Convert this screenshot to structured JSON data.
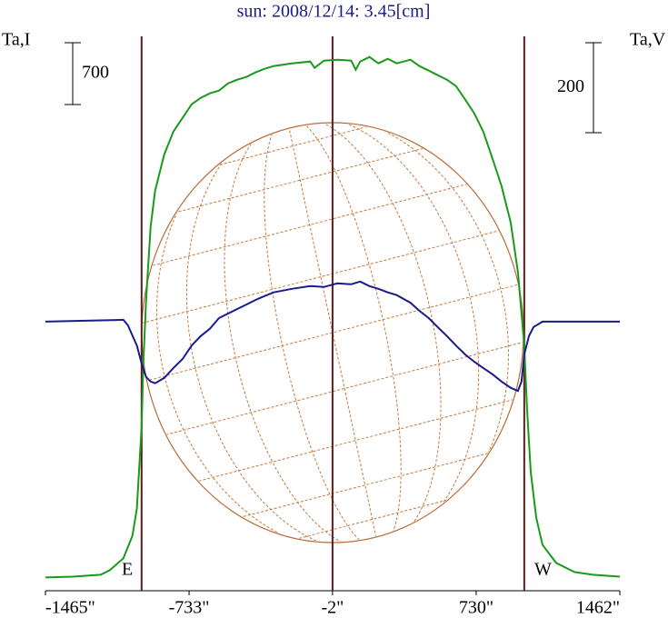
{
  "chart_data": {
    "type": "line",
    "title": "sun: 2008/12/14: 3.45[cm]",
    "xlim": [
      -1465,
      1462
    ],
    "xticks": [
      {
        "value": -1465,
        "label": "-1465\""
      },
      {
        "value": -733,
        "label": "-733\""
      },
      {
        "value": -2,
        "label": "-2\""
      },
      {
        "value": 730,
        "label": "730\""
      },
      {
        "value": 1462,
        "label": "1462\""
      }
    ],
    "ylim": [
      -150,
      6130
    ],
    "y2lim": [
      -598,
      634
    ],
    "y_scale_bar": 700,
    "y2_scale_bar": 200,
    "vertical_lines": [
      -975,
      -2,
      975
    ],
    "annotations": [
      "E",
      "W"
    ],
    "series": [
      {
        "name": "Ta,I",
        "color": "#1a9a1a",
        "x": [
          -1465,
          -1324,
          -1184,
          -1138,
          -1068,
          -1022,
          -999,
          -975,
          -966,
          -952,
          -929,
          -906,
          -859,
          -813,
          -766,
          -720,
          -674,
          -627,
          -581,
          -534,
          -488,
          -441,
          -395,
          -348,
          -302,
          -209,
          -116,
          -93,
          -46,
          23,
          93,
          116,
          139,
          186,
          232,
          279,
          325,
          395,
          441,
          488,
          534,
          581,
          627,
          674,
          720,
          766,
          813,
          859,
          906,
          943,
          975,
          989,
          1008,
          1036,
          1068,
          1138,
          1231,
          1324,
          1462
        ],
        "values": [
          0,
          10,
          31,
          82,
          216,
          473,
          782,
          1708,
          2428,
          3149,
          3972,
          4384,
          4795,
          5052,
          5207,
          5361,
          5433,
          5485,
          5515,
          5598,
          5639,
          5670,
          5721,
          5762,
          5793,
          5824,
          5845,
          5773,
          5855,
          5865,
          5855,
          5752,
          5845,
          5896,
          5824,
          5876,
          5824,
          5865,
          5793,
          5742,
          5690,
          5639,
          5567,
          5413,
          5258,
          5052,
          4744,
          4435,
          4023,
          3457,
          2634,
          1914,
          1194,
          679,
          370,
          165,
          62,
          31,
          10
        ]
      },
      {
        "name": "Ta,V",
        "color": "#1a1a8c",
        "axis": "y2",
        "x": [
          -1465,
          -1068,
          -1045,
          -999,
          -975,
          -952,
          -929,
          -906,
          -859,
          -813,
          -766,
          -720,
          -674,
          -627,
          -581,
          -534,
          -488,
          -441,
          -395,
          -348,
          -302,
          -209,
          -116,
          -46,
          23,
          93,
          139,
          186,
          232,
          279,
          325,
          395,
          441,
          488,
          534,
          581,
          627,
          674,
          720,
          766,
          813,
          859,
          906,
          943,
          961,
          975,
          999,
          1022,
          1068,
          1462
        ],
        "values": [
          0,
          4,
          -8,
          -53,
          -93,
          -123,
          -133,
          -137,
          -125,
          -103,
          -83,
          -53,
          -32,
          -16,
          8,
          18,
          28,
          38,
          48,
          57,
          65,
          73,
          79,
          77,
          85,
          83,
          89,
          79,
          73,
          65,
          59,
          42,
          24,
          8,
          -12,
          -32,
          -53,
          -73,
          -89,
          -103,
          -117,
          -133,
          -147,
          -154,
          -133,
          -73,
          -32,
          -12,
          0,
          0
        ]
      }
    ]
  }
}
